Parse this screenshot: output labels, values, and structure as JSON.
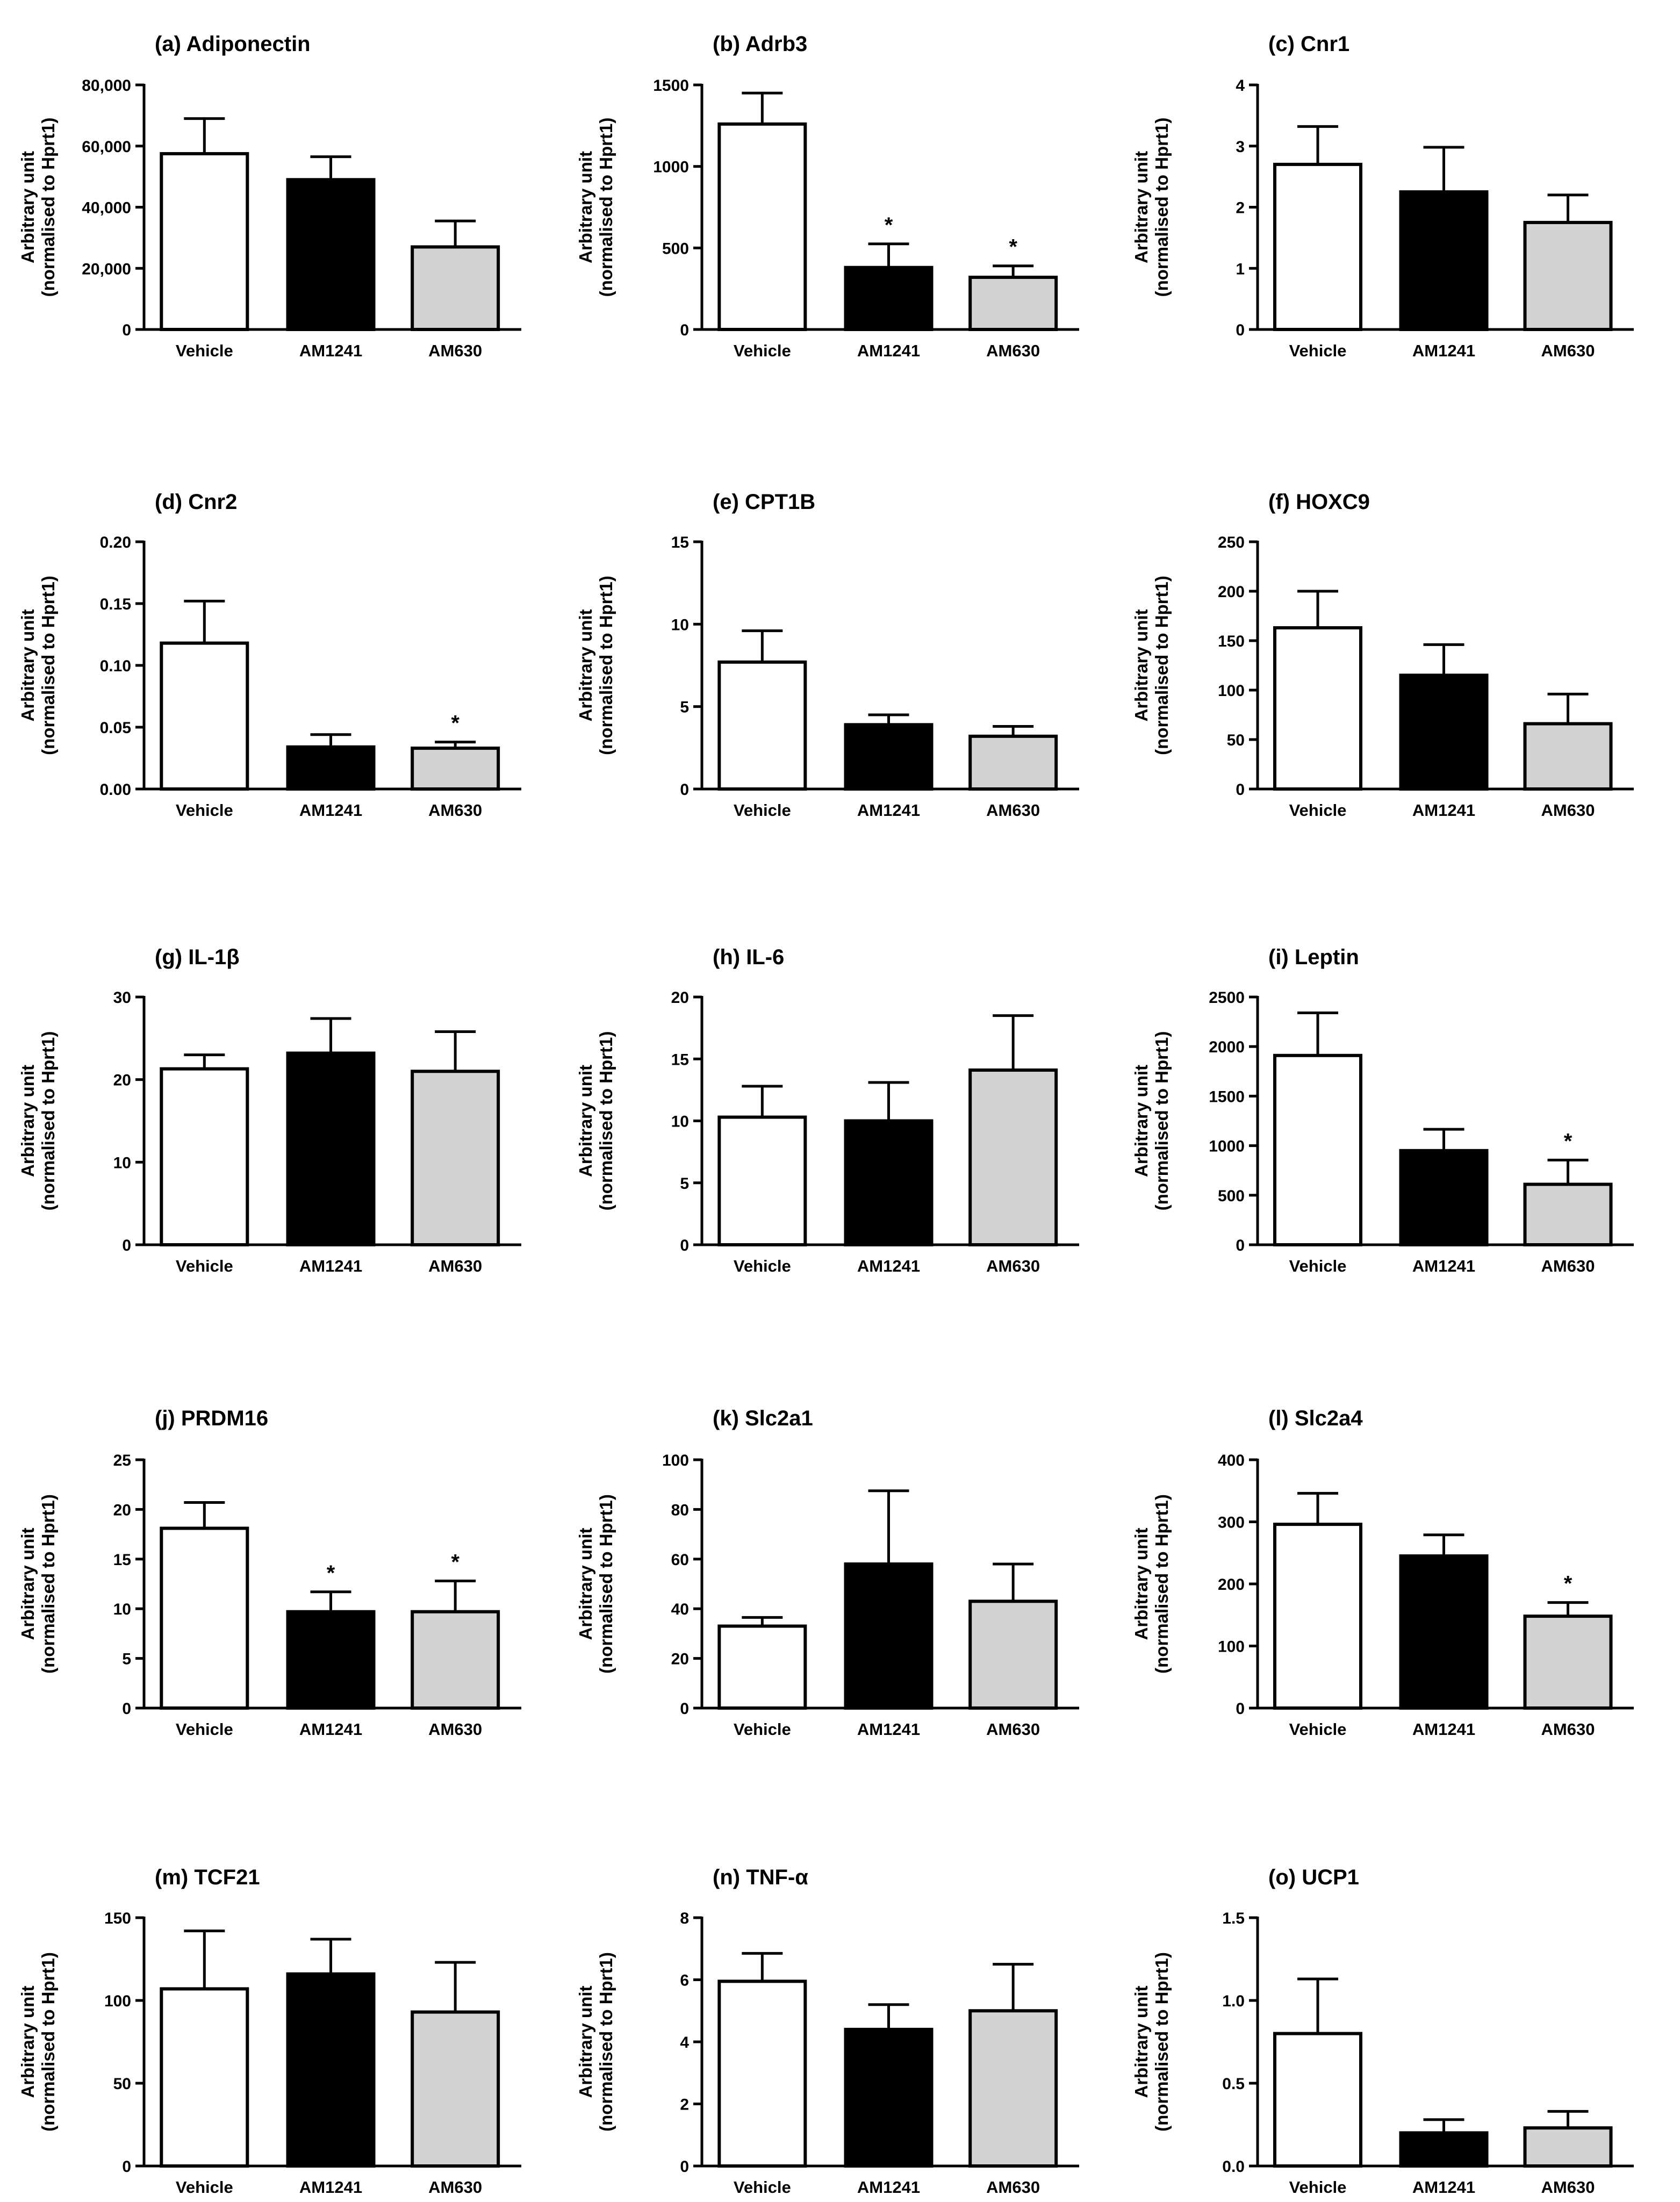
{
  "figure": {
    "ylabel_line1": "Arbitrary unit",
    "ylabel_line2": "(normalised to Hprt1)",
    "categories": [
      "Vehicle",
      "AM1241",
      "AM630"
    ],
    "bar_colors": [
      "#ffffff",
      "#000000",
      "#d3d3d3"
    ]
  },
  "chart_data": [
    {
      "panel": "a",
      "type": "bar",
      "title": "(a) Adiponectin",
      "categories": [
        "Vehicle",
        "AM1241",
        "AM630"
      ],
      "values": [
        57500,
        49000,
        27000
      ],
      "errors": [
        11500,
        7500,
        8500
      ],
      "significant": [
        false,
        false,
        false
      ],
      "ylim": [
        0,
        80000
      ],
      "yticks": [
        0,
        20000,
        40000,
        60000,
        80000
      ],
      "ytick_labels": [
        "0",
        "20,000",
        "40,000",
        "60,000",
        "80,000"
      ],
      "ylabel": "Arbitrary unit (normalised to Hprt1)"
    },
    {
      "panel": "b",
      "type": "bar",
      "title": "(b) Adrb3",
      "categories": [
        "Vehicle",
        "AM1241",
        "AM630"
      ],
      "values": [
        1260,
        380,
        320
      ],
      "errors": [
        190,
        145,
        70
      ],
      "significant": [
        false,
        true,
        true
      ],
      "ylim": [
        0,
        1500
      ],
      "yticks": [
        0,
        500,
        1000,
        1500
      ],
      "ytick_labels": [
        "0",
        "500",
        "1000",
        "1500"
      ],
      "ylabel": "Arbitrary unit (normalised to Hprt1)"
    },
    {
      "panel": "c",
      "type": "bar",
      "title": "(c) Cnr1",
      "categories": [
        "Vehicle",
        "AM1241",
        "AM630"
      ],
      "values": [
        2.7,
        2.25,
        1.75
      ],
      "errors": [
        0.62,
        0.73,
        0.45
      ],
      "significant": [
        false,
        false,
        false
      ],
      "ylim": [
        0,
        4
      ],
      "yticks": [
        0,
        1,
        2,
        3,
        4
      ],
      "ytick_labels": [
        "0",
        "1",
        "2",
        "3",
        "4"
      ],
      "ylabel": "Arbitrary unit (normalised to Hprt1)"
    },
    {
      "panel": "d",
      "type": "bar",
      "title": "(d) Cnr2",
      "categories": [
        "Vehicle",
        "AM1241",
        "AM630"
      ],
      "values": [
        0.118,
        0.034,
        0.033
      ],
      "errors": [
        0.034,
        0.01,
        0.005
      ],
      "significant": [
        false,
        false,
        true
      ],
      "ylim": [
        0,
        0.2
      ],
      "yticks": [
        0,
        0.05,
        0.1,
        0.15,
        0.2
      ],
      "ytick_labels": [
        "0.00",
        "0.05",
        "0.10",
        "0.15",
        "0.20"
      ],
      "ylabel": "Arbitrary unit (normalised to Hprt1)"
    },
    {
      "panel": "e",
      "type": "bar",
      "title": "(e) CPT1B",
      "categories": [
        "Vehicle",
        "AM1241",
        "AM630"
      ],
      "values": [
        7.7,
        3.9,
        3.2
      ],
      "errors": [
        1.9,
        0.6,
        0.6
      ],
      "significant": [
        false,
        false,
        false
      ],
      "ylim": [
        0,
        15
      ],
      "yticks": [
        0,
        5,
        10,
        15
      ],
      "ytick_labels": [
        "0",
        "5",
        "10",
        "15"
      ],
      "ylabel": "Arbitrary unit (normalised to Hprt1)"
    },
    {
      "panel": "f",
      "type": "bar",
      "title": "(f) HOXC9",
      "categories": [
        "Vehicle",
        "AM1241",
        "AM630"
      ],
      "values": [
        163,
        115,
        66
      ],
      "errors": [
        37,
        31,
        30
      ],
      "significant": [
        false,
        false,
        false
      ],
      "ylim": [
        0,
        250
      ],
      "yticks": [
        0,
        50,
        100,
        150,
        200,
        250
      ],
      "ytick_labels": [
        "0",
        "50",
        "100",
        "150",
        "200",
        "250"
      ],
      "ylabel": "Arbitrary unit (normalised to Hprt1)"
    },
    {
      "panel": "g",
      "type": "bar",
      "title": "(g) IL-1β",
      "categories": [
        "Vehicle",
        "AM1241",
        "AM630"
      ],
      "values": [
        21.3,
        23.2,
        21.0
      ],
      "errors": [
        1.7,
        4.2,
        4.8
      ],
      "significant": [
        false,
        false,
        false
      ],
      "ylim": [
        0,
        30
      ],
      "yticks": [
        0,
        10,
        20,
        30
      ],
      "ytick_labels": [
        "0",
        "10",
        "20",
        "30"
      ],
      "ylabel": "Arbitrary unit (normalised to Hprt1)"
    },
    {
      "panel": "h",
      "type": "bar",
      "title": "(h) IL-6",
      "categories": [
        "Vehicle",
        "AM1241",
        "AM630"
      ],
      "values": [
        10.3,
        10.0,
        14.1
      ],
      "errors": [
        2.5,
        3.1,
        4.4
      ],
      "significant": [
        false,
        false,
        false
      ],
      "ylim": [
        0,
        20
      ],
      "yticks": [
        0,
        5,
        10,
        15,
        20
      ],
      "ytick_labels": [
        "0",
        "5",
        "10",
        "15",
        "20"
      ],
      "ylabel": "Arbitrary unit (normalised to Hprt1)"
    },
    {
      "panel": "i",
      "type": "bar",
      "title": "(i) Leptin",
      "categories": [
        "Vehicle",
        "AM1241",
        "AM630"
      ],
      "values": [
        1910,
        950,
        610
      ],
      "errors": [
        430,
        215,
        245
      ],
      "significant": [
        false,
        false,
        true
      ],
      "ylim": [
        0,
        2500
      ],
      "yticks": [
        0,
        500,
        1000,
        1500,
        2000,
        2500
      ],
      "ytick_labels": [
        "0",
        "500",
        "1000",
        "1500",
        "2000",
        "2500"
      ],
      "ylabel": "Arbitrary unit (normalised to Hprt1)"
    },
    {
      "panel": "j",
      "type": "bar",
      "title": "(j) PRDM16",
      "categories": [
        "Vehicle",
        "AM1241",
        "AM630"
      ],
      "values": [
        18.1,
        9.7,
        9.7
      ],
      "errors": [
        2.6,
        2.0,
        3.1
      ],
      "significant": [
        false,
        true,
        true
      ],
      "ylim": [
        0,
        25
      ],
      "yticks": [
        0,
        5,
        10,
        15,
        20,
        25
      ],
      "ytick_labels": [
        "0",
        "5",
        "10",
        "15",
        "20",
        "25"
      ],
      "ylabel": "Arbitrary unit (normalised to Hprt1)"
    },
    {
      "panel": "k",
      "type": "bar",
      "title": "(k) Slc2a1",
      "categories": [
        "Vehicle",
        "AM1241",
        "AM630"
      ],
      "values": [
        33,
        58,
        43
      ],
      "errors": [
        3.5,
        29.5,
        15
      ],
      "significant": [
        false,
        false,
        false
      ],
      "ylim": [
        0,
        100
      ],
      "yticks": [
        0,
        20,
        40,
        60,
        80,
        100
      ],
      "ytick_labels": [
        "0",
        "20",
        "40",
        "60",
        "80",
        "100"
      ],
      "ylabel": "Arbitrary unit (normalised to Hprt1)"
    },
    {
      "panel": "l",
      "type": "bar",
      "title": "(l) Slc2a4",
      "categories": [
        "Vehicle",
        "AM1241",
        "AM630"
      ],
      "values": [
        296,
        245,
        148
      ],
      "errors": [
        50,
        34,
        22
      ],
      "significant": [
        false,
        false,
        true
      ],
      "ylim": [
        0,
        400
      ],
      "yticks": [
        0,
        100,
        200,
        300,
        400
      ],
      "ytick_labels": [
        "0",
        "100",
        "200",
        "300",
        "400"
      ],
      "ylabel": "Arbitrary unit (normalised to Hprt1)"
    },
    {
      "panel": "m",
      "type": "bar",
      "title": "(m) TCF21",
      "categories": [
        "Vehicle",
        "AM1241",
        "AM630"
      ],
      "values": [
        107,
        116,
        93
      ],
      "errors": [
        35,
        21,
        30
      ],
      "significant": [
        false,
        false,
        false
      ],
      "ylim": [
        0,
        150
      ],
      "yticks": [
        0,
        50,
        100,
        150
      ],
      "ytick_labels": [
        "0",
        "50",
        "100",
        "150"
      ],
      "ylabel": "Arbitrary unit (normalised to Hprt1)"
    },
    {
      "panel": "n",
      "type": "bar",
      "title": "(n) TNF-α",
      "categories": [
        "Vehicle",
        "AM1241",
        "AM630"
      ],
      "values": [
        5.95,
        4.4,
        5.0
      ],
      "errors": [
        0.9,
        0.8,
        1.5
      ],
      "significant": [
        false,
        false,
        false
      ],
      "ylim": [
        0,
        8
      ],
      "yticks": [
        0,
        2,
        4,
        6,
        8
      ],
      "ytick_labels": [
        "0",
        "2",
        "4",
        "6",
        "8"
      ],
      "ylabel": "Arbitrary unit (normalised to Hprt1)"
    },
    {
      "panel": "o",
      "type": "bar",
      "title": "(o) UCP1",
      "categories": [
        "Vehicle",
        "AM1241",
        "AM630"
      ],
      "values": [
        0.8,
        0.2,
        0.23
      ],
      "errors": [
        0.33,
        0.08,
        0.1
      ],
      "significant": [
        false,
        false,
        false
      ],
      "ylim": [
        0,
        1.5
      ],
      "yticks": [
        0,
        0.5,
        1.0,
        1.5
      ],
      "ytick_labels": [
        "0.0",
        "0.5",
        "1.0",
        "1.5"
      ],
      "ylabel": "Arbitrary unit (normalised to Hprt1)"
    }
  ]
}
